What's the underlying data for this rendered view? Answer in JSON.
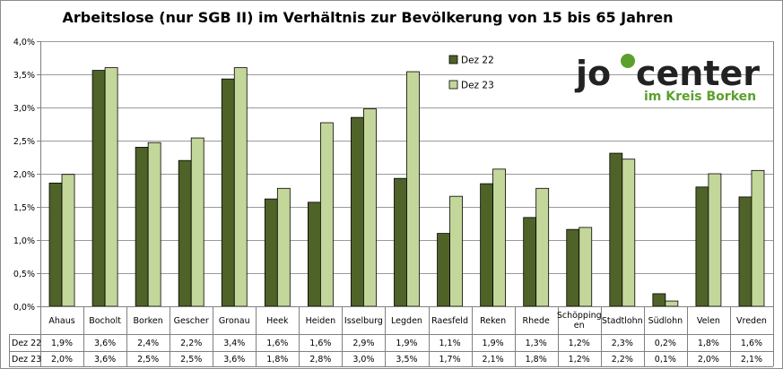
{
  "chart_data": {
    "type": "bar",
    "title": "Arbeitslose (nur SGB II) im Verhältnis zur Bevölkerung von 15 bis 65 Jahren",
    "categories": [
      "Ahaus",
      "Bocholt",
      "Borken",
      "Gescher",
      "Gronau",
      "Heek",
      "Heiden",
      "Isselburg",
      "Legden",
      "Raesfeld",
      "Reken",
      "Rhede",
      "Schöppingen",
      "Stadtlohn",
      "Südlohn",
      "Velen",
      "Vreden"
    ],
    "category_labels": [
      "Ahaus",
      "Bocholt",
      "Borken",
      "Gescher",
      "Gronau",
      "Heek",
      "Heiden",
      "Isselburg",
      "Legden",
      "Raesfeld",
      "Reken",
      "Rhede",
      "Schöpping\nen",
      "Stadtlohn",
      "Südlohn",
      "Velen",
      "Vreden"
    ],
    "series": [
      {
        "name": "Dez 22",
        "color": "#4f6228",
        "values": [
          1.86,
          3.56,
          2.4,
          2.2,
          3.43,
          1.62,
          1.57,
          2.85,
          1.93,
          1.1,
          1.85,
          1.34,
          1.16,
          2.31,
          0.19,
          1.8,
          1.65
        ],
        "table_labels": [
          "1,9%",
          "3,6%",
          "2,4%",
          "2,2%",
          "3,4%",
          "1,6%",
          "1,6%",
          "2,9%",
          "1,9%",
          "1,1%",
          "1,9%",
          "1,3%",
          "1,2%",
          "2,3%",
          "0,2%",
          "1,8%",
          "1,6%"
        ]
      },
      {
        "name": "Dez 23",
        "color": "#c4d79b",
        "values": [
          1.99,
          3.6,
          2.47,
          2.54,
          3.6,
          1.78,
          2.77,
          2.98,
          3.54,
          1.66,
          2.07,
          1.78,
          1.19,
          2.22,
          0.08,
          2.0,
          2.05
        ],
        "table_labels": [
          "2,0%",
          "3,6%",
          "2,5%",
          "2,5%",
          "3,6%",
          "1,8%",
          "2,8%",
          "3,0%",
          "3,5%",
          "1,7%",
          "2,1%",
          "1,8%",
          "1,2%",
          "2,2%",
          "0,1%",
          "2,0%",
          "2,1%"
        ]
      }
    ],
    "ylim": [
      0,
      4.0
    ],
    "yticks": [
      "0,0%",
      "0,5%",
      "1,0%",
      "1,5%",
      "2,0%",
      "2,5%",
      "3,0%",
      "3,5%",
      "4,0%"
    ],
    "grid": true,
    "legend": "top-center",
    "data_table": true
  },
  "logo": {
    "text_part1": "jo",
    "text_part2": "center",
    "subtitle": "im Kreis Borken",
    "color_dark": "#222222",
    "color_green": "#5aa02c"
  }
}
